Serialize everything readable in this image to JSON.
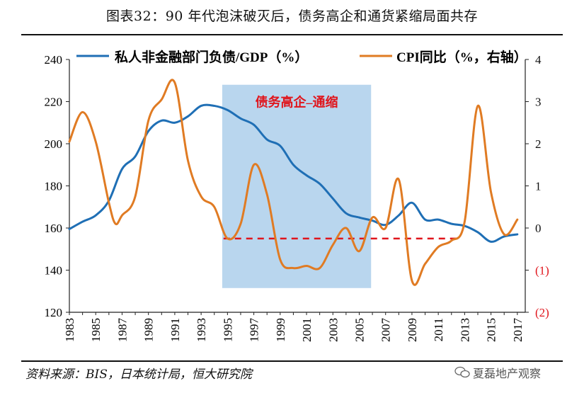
{
  "title": "图表32：90 年代泡沫破灭后，债务高企和通货紧缩局面共存",
  "source": "资料来源：BIS，日本统计局，恒大研究院",
  "watermark": "夏磊地产观察",
  "colors": {
    "debt": "#1f6fb5",
    "cpi": "#e07b23",
    "shade": "#b9d6ee",
    "annotation": "#e0151c",
    "dash": "#e0151c"
  },
  "chart_data": {
    "type": "line",
    "title": "",
    "legend": {
      "position": "top",
      "items": [
        "私人非金融部门负债/GDP（%）",
        "CPI同比（%，右轴）"
      ]
    },
    "x_axis": {
      "range": [
        1983,
        2017.6
      ],
      "ticks": [
        "1983",
        "1985",
        "1987",
        "1989",
        "1991",
        "1993",
        "1995",
        "1997",
        "1999",
        "2001",
        "2003",
        "2005",
        "2007",
        "2009",
        "2011",
        "2013",
        "2015",
        "2017"
      ]
    },
    "y_left": {
      "range": [
        120,
        240
      ],
      "ticks": [
        "240",
        "220",
        "200",
        "180",
        "160",
        "140",
        "120"
      ],
      "tick_values": [
        240,
        220,
        200,
        180,
        160,
        140,
        120
      ]
    },
    "y_right": {
      "range": [
        -2,
        4
      ],
      "ticks": [
        "4",
        "3",
        "2",
        "1",
        "0",
        "(1)",
        "(2)"
      ],
      "tick_values": [
        4,
        3,
        2,
        1,
        0,
        -1,
        -2
      ]
    },
    "shaded_region": {
      "x": [
        1994.6,
        2005.9
      ],
      "y_left": [
        131.5,
        228
      ],
      "label": "债务高企–通缩"
    },
    "dashed_line": {
      "axis": "right",
      "value": -0.25,
      "x": [
        1994.7,
        2012.5
      ]
    },
    "series": [
      {
        "name": "私人非金融部门负债/GDP（%）",
        "axis": "left",
        "x": [
          1983,
          1984,
          1985,
          1986,
          1987,
          1988,
          1989,
          1990,
          1991,
          1992,
          1993,
          1994,
          1995,
          1996,
          1997,
          1998,
          1999,
          2000,
          2001,
          2002,
          2003,
          2004,
          2005,
          2006,
          2007,
          2008,
          2009,
          2010,
          2011,
          2012,
          2013,
          2014,
          2015,
          2016,
          2017
        ],
        "values": [
          159.5,
          163,
          166,
          173,
          188,
          194,
          206,
          211,
          210,
          213,
          218,
          218,
          216,
          212,
          209,
          202,
          199,
          190,
          185,
          181,
          174,
          167,
          165,
          163.5,
          161.5,
          166,
          172,
          164,
          164,
          162,
          161,
          158,
          153.5,
          156,
          157
        ]
      },
      {
        "name": "CPI同比（%，右轴）",
        "axis": "right",
        "x": [
          1983,
          1984,
          1985,
          1986,
          1986.5,
          1987,
          1988,
          1989,
          1990,
          1991,
          1992,
          1993,
          1994,
          1995,
          1996,
          1997,
          1998,
          1999,
          2000,
          2001,
          2002,
          2003,
          2004,
          2005,
          2006,
          2007,
          2008,
          2009,
          2010,
          2011,
          2012,
          2013,
          2014,
          2015,
          2016,
          2017
        ],
        "values": [
          2.05,
          2.75,
          2.05,
          0.6,
          0.1,
          0.3,
          0.75,
          2.55,
          3.05,
          3.45,
          1.6,
          0.75,
          0.5,
          -0.25,
          0.1,
          1.5,
          0.8,
          -0.75,
          -0.95,
          -0.9,
          -0.95,
          -0.4,
          0.0,
          -0.55,
          0.25,
          0.0,
          1.15,
          -1.25,
          -0.85,
          -0.45,
          -0.3,
          0.15,
          2.9,
          0.85,
          -0.15,
          0.2
        ]
      }
    ]
  }
}
